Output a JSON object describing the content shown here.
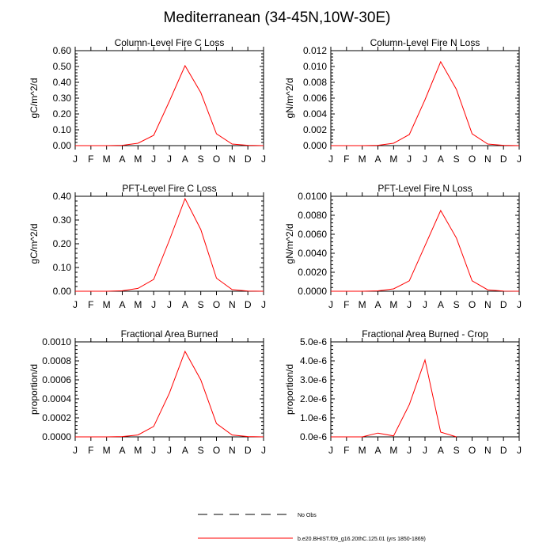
{
  "title": "Mediterranean (34-45N,10W-30E)",
  "months": [
    "J",
    "F",
    "M",
    "A",
    "M",
    "J",
    "J",
    "A",
    "S",
    "O",
    "N",
    "D",
    "J"
  ],
  "chart_data": [
    {
      "type": "line",
      "title": "Column-Level Fire C Loss",
      "ylabel": "gC/m^2/d",
      "ylim": [
        0,
        0.6
      ],
      "yticks": [
        "0.00",
        "0.10",
        "0.20",
        "0.30",
        "0.40",
        "0.50",
        "0.60"
      ],
      "series": [
        {
          "values": [
            0.0,
            0.0,
            0.0,
            0.002,
            0.015,
            0.065,
            0.28,
            0.505,
            0.335,
            0.075,
            0.01,
            0.002,
            0.0
          ]
        }
      ]
    },
    {
      "type": "line",
      "title": "Column-Level Fire N Loss",
      "ylabel": "gN/m^2/d",
      "ylim": [
        0,
        0.012
      ],
      "yticks": [
        "0.000",
        "0.002",
        "0.004",
        "0.006",
        "0.008",
        "0.010",
        "0.012"
      ],
      "series": [
        {
          "values": [
            0.0,
            0.0,
            0.0,
            4e-05,
            0.0003,
            0.0014,
            0.0058,
            0.0106,
            0.0071,
            0.0015,
            0.0002,
            4e-05,
            0.0
          ]
        }
      ]
    },
    {
      "type": "line",
      "title": "PFT-Level Fire C Loss",
      "ylabel": "gC/m^2/d",
      "ylim": [
        0,
        0.4
      ],
      "yticks": [
        "0.00",
        "0.10",
        "0.20",
        "0.30",
        "0.40"
      ],
      "series": [
        {
          "values": [
            0.0,
            0.0,
            0.0,
            0.002,
            0.012,
            0.05,
            0.215,
            0.39,
            0.26,
            0.055,
            0.007,
            0.001,
            0.0
          ]
        }
      ]
    },
    {
      "type": "line",
      "title": "PFT-Level Fire N Loss",
      "ylabel": "gN/m^2/d",
      "ylim": [
        0,
        0.01
      ],
      "yticks": [
        "0.0000",
        "0.0020",
        "0.0040",
        "0.0060",
        "0.0080",
        "0.0100"
      ],
      "series": [
        {
          "values": [
            0.0,
            0.0,
            0.0,
            4e-05,
            0.00025,
            0.0011,
            0.0048,
            0.0085,
            0.0056,
            0.0011,
            0.00015,
            2e-05,
            0.0
          ]
        }
      ]
    },
    {
      "type": "line",
      "title": "Fractional Area Burned",
      "ylabel": "proportion/d",
      "ylim": [
        0,
        0.001
      ],
      "yticks": [
        "0.0000",
        "0.0002",
        "0.0004",
        "0.0006",
        "0.0008",
        "0.0010"
      ],
      "series": [
        {
          "values": [
            0.0,
            0.0,
            0.0,
            3e-06,
            2e-05,
            0.00011,
            0.00046,
            0.0009,
            0.0006,
            0.00014,
            2e-05,
            3e-06,
            0.0
          ]
        }
      ]
    },
    {
      "type": "line",
      "title": "Fractional Area Burned - Crop",
      "ylabel": "proportion/d",
      "ylim": [
        0,
        5e-06
      ],
      "yticks": [
        "0.0e-6",
        "1.0e-6",
        "2.0e-6",
        "3.0e-6",
        "4.0e-6",
        "5.0e-6"
      ],
      "series": [
        {
          "values": [
            0.0,
            0.0,
            0.0,
            2e-07,
            5e-08,
            1.7e-06,
            4.05e-06,
            2.5e-07,
            0.0,
            null,
            null,
            null,
            null
          ]
        }
      ]
    }
  ],
  "legend": [
    {
      "label": "No Obs",
      "style": "dashed",
      "color": "#000000"
    },
    {
      "label": "b.e20.BHIST.f09_g16.20thC.125.01 (yrs 1850-1869)",
      "style": "solid",
      "color": "#ff0000"
    }
  ],
  "colors": {
    "series": "#ff0000",
    "axes": "#000000"
  }
}
